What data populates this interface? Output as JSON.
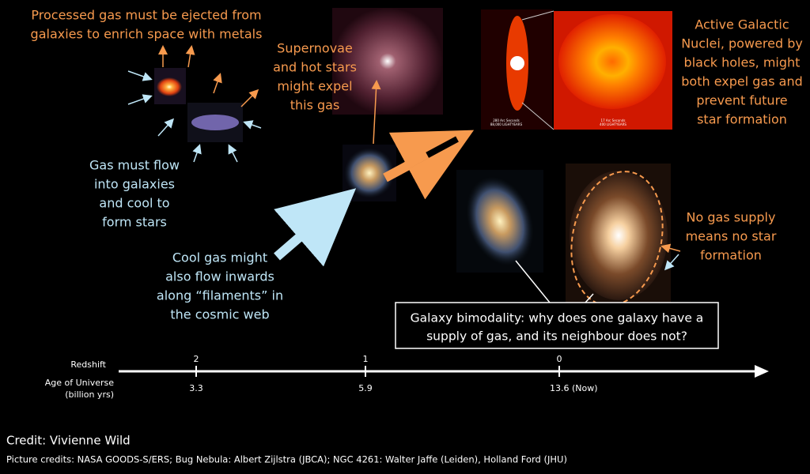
{
  "annotations": {
    "gas_ejection": [
      "Processed gas must be ejected from",
      "galaxies to enrich space with metals"
    ],
    "gas_inflow": [
      "Gas must flow",
      "into galaxies",
      "and cool to",
      "form stars"
    ],
    "supernovae": [
      "Supernovae",
      "and hot stars",
      "might expel",
      "this gas"
    ],
    "agn": [
      "Active Galactic",
      "Nuclei, powered by",
      "black holes, might",
      "both expel gas and",
      "prevent future",
      "star formation"
    ],
    "filaments": [
      "Cool gas might",
      "also flow inwards",
      "along “filaments” in",
      "the cosmic web"
    ],
    "no_gas": [
      "No gas supply",
      "means no star",
      "formation"
    ],
    "bimodality": [
      "Galaxy bimodality: why does one galaxy have a",
      "supply of gas, and its neighbour does not?"
    ]
  },
  "image_captions": [
    "280 Arc Seconds",
    "88,000 LIGHTYEARS",
    "17 Arc Seconds",
    "400 LIGHTYEARS"
  ],
  "timeline": {
    "redshift_label": "Redshift",
    "age_label": [
      "Age of Universe",
      "(billion yrs)"
    ],
    "ticks": [
      {
        "redshift": "2",
        "age": "3.3"
      },
      {
        "redshift": "1",
        "age": "5.9"
      },
      {
        "redshift": "0",
        "age": "13.6 (Now)"
      }
    ]
  },
  "credit": "Credit: Vivienne Wild",
  "picture_credits": "Picture credits:  NASA GOODS-S/ERS; Bug Nebula: Albert Zijlstra (JBCA);  NGC 4261: Walter Jaffe (Leiden), Holland Ford (JHU)"
}
